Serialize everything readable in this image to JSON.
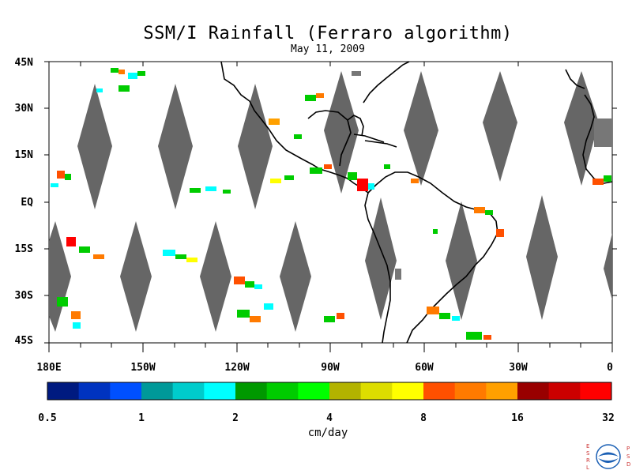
{
  "title": "SSM/I Rainfall (Ferraro algorithm)",
  "date": "May 11, 2009",
  "lat_labels": [
    "45N",
    "30N",
    "15N",
    "EQ",
    "15S",
    "30S",
    "45S"
  ],
  "lon_labels": [
    "180E",
    "150W",
    "120W",
    "90W",
    "60W",
    "30W",
    "0"
  ],
  "colorbar": {
    "colors": [
      "#001a80",
      "#0033c0",
      "#0050ff",
      "#009999",
      "#00cccc",
      "#00ffff",
      "#009900",
      "#00cc00",
      "#00ff00",
      "#b3b300",
      "#dddd00",
      "#ffff00",
      "#ff5000",
      "#ff7a00",
      "#ffa000",
      "#990000",
      "#cc0000",
      "#ff0000"
    ],
    "tick_labels": [
      "0.5",
      "1",
      "2",
      "4",
      "8",
      "16",
      "32"
    ],
    "units": "cm/day"
  },
  "logo": {
    "left_text": "ESRL",
    "right_text": "PSD",
    "center_text": "NOAA"
  },
  "colors": {
    "swath_gap": "#666666",
    "land_outline": "#000000",
    "background": "#ffffff"
  }
}
